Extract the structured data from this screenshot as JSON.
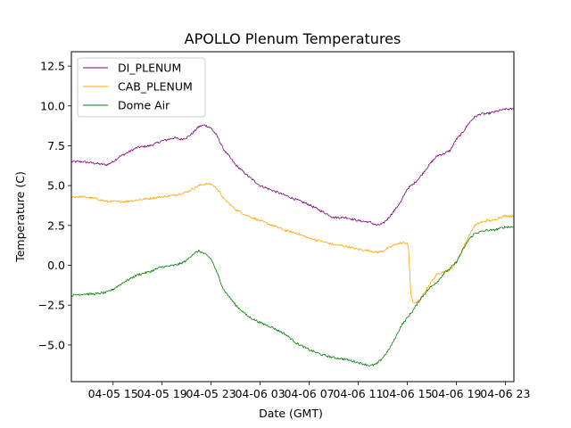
{
  "chart_data": {
    "type": "line",
    "title": "APOLLO Plenum Temperatures",
    "xlabel": "Date (GMT)",
    "ylabel": "Temperature (C)",
    "x_unit": "hours since 04-05 00:00 GMT",
    "xlim": [
      11.6,
      47.7
    ],
    "ylim": [
      -7.3,
      13.4
    ],
    "x_ticks": [
      {
        "value": 15,
        "label": "04-05 15"
      },
      {
        "value": 19,
        "label": "04-05 19"
      },
      {
        "value": 23,
        "label": "04-05 23"
      },
      {
        "value": 27,
        "label": "04-06 03"
      },
      {
        "value": 31,
        "label": "04-06 07"
      },
      {
        "value": 35,
        "label": "04-06 11"
      },
      {
        "value": 39,
        "label": "04-06 15"
      },
      {
        "value": 43,
        "label": "04-06 19"
      },
      {
        "value": 47,
        "label": "04-06 23"
      }
    ],
    "y_ticks": [
      {
        "value": -5.0,
        "label": "−5.0"
      },
      {
        "value": -2.5,
        "label": "−2.5"
      },
      {
        "value": 0.0,
        "label": "0.0"
      },
      {
        "value": 2.5,
        "label": "2.5"
      },
      {
        "value": 5.0,
        "label": "5.0"
      },
      {
        "value": 7.5,
        "label": "7.5"
      },
      {
        "value": 10.0,
        "label": "10.0"
      },
      {
        "value": 12.5,
        "label": "12.5"
      }
    ],
    "legend_position": "top-left",
    "series": [
      {
        "name": "DI_PLENUM",
        "color": "#800080",
        "x": [
          11.6,
          12.5,
          13.5,
          14.5,
          15.0,
          15.5,
          16.5,
          17.0,
          18.0,
          19.0,
          19.5,
          20.0,
          20.5,
          21.0,
          21.5,
          22.0,
          22.5,
          23.0,
          23.5,
          24.0,
          25.0,
          26.0,
          27.0,
          28.0,
          29.0,
          30.0,
          31.0,
          32.0,
          33.0,
          34.0,
          35.0,
          36.0,
          36.5,
          37.0,
          37.5,
          38.0,
          38.5,
          39.0,
          39.5,
          40.0,
          40.5,
          41.0,
          41.5,
          42.0,
          42.5,
          43.0,
          43.5,
          44.0,
          44.5,
          45.0,
          45.5,
          46.0,
          46.5,
          47.0,
          47.7
        ],
        "y": [
          6.5,
          6.5,
          6.4,
          6.3,
          6.5,
          6.8,
          7.2,
          7.4,
          7.5,
          7.8,
          7.9,
          8.0,
          7.9,
          8.0,
          8.3,
          8.7,
          8.8,
          8.6,
          8.1,
          7.3,
          6.3,
          5.6,
          5.0,
          4.7,
          4.4,
          4.1,
          3.8,
          3.4,
          3.0,
          3.0,
          2.8,
          2.7,
          2.5,
          2.6,
          3.0,
          3.5,
          4.0,
          4.8,
          5.1,
          5.5,
          6.0,
          6.5,
          6.9,
          7.0,
          7.2,
          7.9,
          8.3,
          8.9,
          9.3,
          9.5,
          9.5,
          9.6,
          9.7,
          9.8,
          9.8
        ]
      },
      {
        "name": "CAB_PLENUM",
        "color": "#FFA500",
        "x": [
          11.6,
          12.5,
          13.5,
          14.5,
          15.0,
          16.0,
          17.0,
          18.0,
          19.0,
          20.0,
          20.5,
          21.0,
          21.5,
          22.0,
          22.5,
          23.0,
          23.5,
          24.0,
          25.0,
          26.0,
          27.0,
          28.0,
          29.0,
          30.0,
          31.0,
          32.0,
          33.0,
          34.0,
          35.0,
          36.0,
          36.5,
          37.0,
          37.5,
          38.0,
          38.5,
          39.0,
          39.1,
          39.3,
          39.5,
          40.0,
          40.5,
          41.0,
          41.5,
          42.0,
          42.5,
          43.0,
          43.5,
          44.0,
          44.5,
          45.0,
          45.5,
          46.0,
          46.5,
          47.0,
          47.7
        ],
        "y": [
          4.3,
          4.3,
          4.2,
          4.0,
          4.0,
          4.0,
          4.1,
          4.2,
          4.3,
          4.4,
          4.5,
          4.6,
          4.8,
          5.0,
          5.1,
          5.1,
          4.8,
          4.2,
          3.5,
          3.1,
          2.8,
          2.5,
          2.2,
          2.0,
          1.7,
          1.5,
          1.3,
          1.2,
          1.0,
          0.9,
          0.8,
          0.9,
          1.1,
          1.3,
          1.4,
          1.4,
          1.0,
          -1.8,
          -2.4,
          -2.2,
          -1.6,
          -1.0,
          -0.5,
          -0.4,
          -0.3,
          0.2,
          1.0,
          1.8,
          2.5,
          2.7,
          2.8,
          2.8,
          3.0,
          3.1,
          3.1
        ]
      },
      {
        "name": "Dome Air",
        "color": "#008000",
        "x": [
          11.6,
          12.5,
          13.5,
          14.5,
          15.0,
          16.0,
          17.0,
          18.0,
          19.0,
          20.0,
          20.5,
          21.0,
          21.5,
          22.0,
          22.5,
          23.0,
          23.5,
          24.0,
          25.0,
          26.0,
          27.0,
          28.0,
          29.0,
          30.0,
          31.0,
          32.0,
          33.0,
          34.0,
          35.0,
          36.0,
          36.5,
          37.0,
          37.5,
          38.0,
          38.5,
          39.0,
          39.5,
          40.0,
          40.5,
          41.0,
          41.5,
          42.0,
          42.5,
          43.0,
          43.5,
          44.0,
          44.5,
          45.0,
          45.5,
          46.0,
          46.5,
          47.0,
          47.7
        ],
        "y": [
          -1.9,
          -1.8,
          -1.8,
          -1.7,
          -1.5,
          -1.0,
          -0.6,
          -0.4,
          -0.1,
          0.0,
          0.1,
          0.3,
          0.7,
          0.9,
          0.7,
          0.4,
          -0.5,
          -1.5,
          -2.5,
          -3.2,
          -3.6,
          -3.9,
          -4.3,
          -4.9,
          -5.3,
          -5.6,
          -5.8,
          -5.9,
          -6.1,
          -6.3,
          -6.2,
          -5.8,
          -5.3,
          -4.6,
          -3.8,
          -3.3,
          -2.8,
          -2.2,
          -1.7,
          -1.3,
          -1.0,
          -0.5,
          -0.2,
          0.2,
          0.9,
          1.6,
          2.0,
          2.1,
          2.2,
          2.2,
          2.3,
          2.4,
          2.4
        ]
      }
    ]
  }
}
